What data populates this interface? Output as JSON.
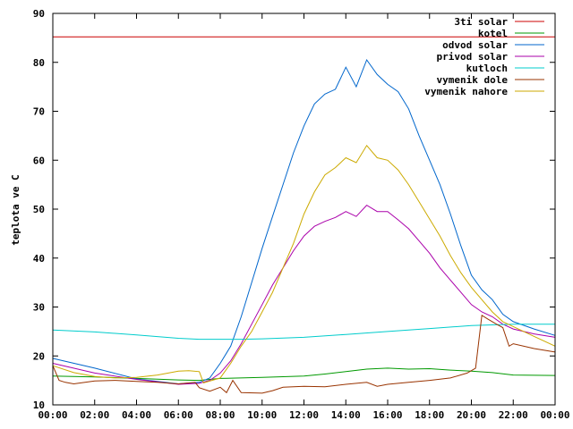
{
  "chart_data": {
    "type": "line",
    "title": "",
    "xlabel": "",
    "ylabel": "teplota ve C",
    "ylim": [
      10,
      90
    ],
    "xlim": [
      0,
      24
    ],
    "x_unit": "hours",
    "x_tick_labels": [
      "00:00",
      "02:00",
      "04:00",
      "06:00",
      "08:00",
      "10:00",
      "12:00",
      "14:00",
      "16:00",
      "18:00",
      "20:00",
      "22:00",
      "00:00"
    ],
    "y_ticks": [
      10,
      20,
      30,
      40,
      50,
      60,
      70,
      80,
      90
    ],
    "grid": false,
    "legend_position": "top-right",
    "series": [
      {
        "name": "3ti solar",
        "color": "#cc0000",
        "x": [
          0,
          24
        ],
        "y": [
          85.2,
          85.2
        ]
      },
      {
        "name": "kotel",
        "color": "#009900",
        "x": [
          0,
          2,
          4,
          6,
          7,
          8,
          10,
          12,
          13,
          14,
          15,
          16,
          17,
          18,
          19,
          20,
          21,
          22,
          24
        ],
        "y": [
          15.9,
          15.7,
          15.4,
          15.1,
          15.0,
          15.4,
          15.6,
          15.9,
          16.3,
          16.8,
          17.3,
          17.5,
          17.3,
          17.4,
          17.1,
          16.9,
          16.6,
          16.1,
          16.0
        ]
      },
      {
        "name": "odvod solar",
        "color": "#0066cc",
        "x": [
          0,
          2,
          4,
          6,
          7,
          7.5,
          8,
          8.5,
          9,
          9.5,
          10,
          10.5,
          11,
          11.5,
          12,
          12.5,
          13,
          13.5,
          14,
          14.5,
          15,
          15.5,
          16,
          16.5,
          17,
          17.5,
          18,
          18.5,
          19,
          19.5,
          20,
          20.5,
          21,
          21.5,
          22,
          23,
          24
        ],
        "y": [
          19.5,
          17.5,
          15.3,
          14.3,
          14.6,
          15.5,
          18.5,
          22,
          28,
          35,
          42,
          48.5,
          55,
          61.5,
          67,
          71.5,
          73.5,
          74.5,
          79,
          75,
          80.5,
          77.5,
          75.5,
          74,
          70.5,
          65,
          60,
          55,
          49,
          42.5,
          36.5,
          33.5,
          31.5,
          28.5,
          27,
          25.5,
          24.2
        ]
      },
      {
        "name": "privod solar",
        "color": "#aa00aa",
        "x": [
          0,
          2,
          4,
          6,
          7,
          7.5,
          8,
          8.5,
          9,
          9.5,
          10,
          10.5,
          11,
          11.5,
          12,
          12.5,
          13,
          13.5,
          14,
          14.5,
          15,
          15.5,
          16,
          16.5,
          17,
          17.5,
          18,
          18.5,
          19,
          19.5,
          20,
          20.5,
          21,
          21.5,
          22,
          23,
          24
        ],
        "y": [
          18.5,
          16.5,
          15.2,
          14.2,
          14.4,
          15.0,
          16.5,
          19,
          22.5,
          26.5,
          30.5,
          34.5,
          38,
          41.5,
          44.5,
          46.5,
          47.5,
          48.3,
          49.5,
          48.5,
          50.8,
          49.5,
          49.5,
          47.8,
          46,
          43.5,
          41,
          38,
          35.5,
          33,
          30.5,
          29,
          28,
          26.5,
          25.5,
          24.5,
          23.8
        ]
      },
      {
        "name": "kutloch",
        "color": "#00cccc",
        "x": [
          0,
          2,
          4,
          6,
          7,
          8,
          9,
          10,
          12,
          14,
          16,
          18,
          20,
          22,
          24
        ],
        "y": [
          25.3,
          24.9,
          24.3,
          23.6,
          23.4,
          23.4,
          23.4,
          23.5,
          23.8,
          24.4,
          25.0,
          25.6,
          26.2,
          26.5,
          26.5
        ]
      },
      {
        "name": "vymenik dole",
        "color": "#993300",
        "x": [
          0,
          0.3,
          0.6,
          1,
          2,
          3,
          4,
          5,
          6,
          6.8,
          7,
          7.5,
          8,
          8.3,
          8.6,
          9,
          10,
          10.5,
          11,
          12,
          13,
          14,
          15,
          15.5,
          16,
          17,
          18,
          19,
          19.8,
          20.2,
          20.5,
          20.8,
          21.2,
          21.5,
          21.8,
          22,
          23,
          24
        ],
        "y": [
          18.0,
          15.0,
          14.6,
          14.3,
          14.9,
          15.0,
          14.8,
          14.6,
          14.3,
          14.6,
          13.5,
          12.8,
          13.6,
          12.5,
          15.0,
          12.5,
          12.4,
          12.9,
          13.6,
          13.8,
          13.7,
          14.2,
          14.6,
          13.8,
          14.2,
          14.6,
          15.0,
          15.5,
          16.5,
          17.5,
          28.3,
          27.5,
          26.5,
          25.8,
          22.0,
          22.5,
          21.5,
          20.8
        ]
      },
      {
        "name": "vymenik nahore",
        "color": "#ccaa00",
        "x": [
          0,
          1,
          2,
          3,
          4,
          5,
          6,
          6.5,
          7,
          7.2,
          8,
          8.5,
          9,
          9.5,
          10,
          10.5,
          11,
          11.5,
          12,
          12.5,
          13,
          13.5,
          14,
          14.5,
          15,
          15.5,
          16,
          16.5,
          17,
          17.5,
          18,
          18.5,
          19,
          19.5,
          20,
          20.5,
          21,
          21.5,
          22,
          23,
          24
        ],
        "y": [
          18.0,
          16.6,
          15.8,
          15.5,
          15.6,
          16.1,
          16.9,
          17.0,
          16.8,
          14.5,
          15.5,
          18.5,
          22,
          25,
          29,
          33,
          38,
          43,
          49,
          53.5,
          57,
          58.5,
          60.5,
          59.5,
          63,
          60.5,
          60,
          58,
          55,
          51.5,
          48,
          44.5,
          40.5,
          37,
          34,
          31.5,
          29,
          27,
          26,
          24,
          22
        ]
      }
    ]
  }
}
